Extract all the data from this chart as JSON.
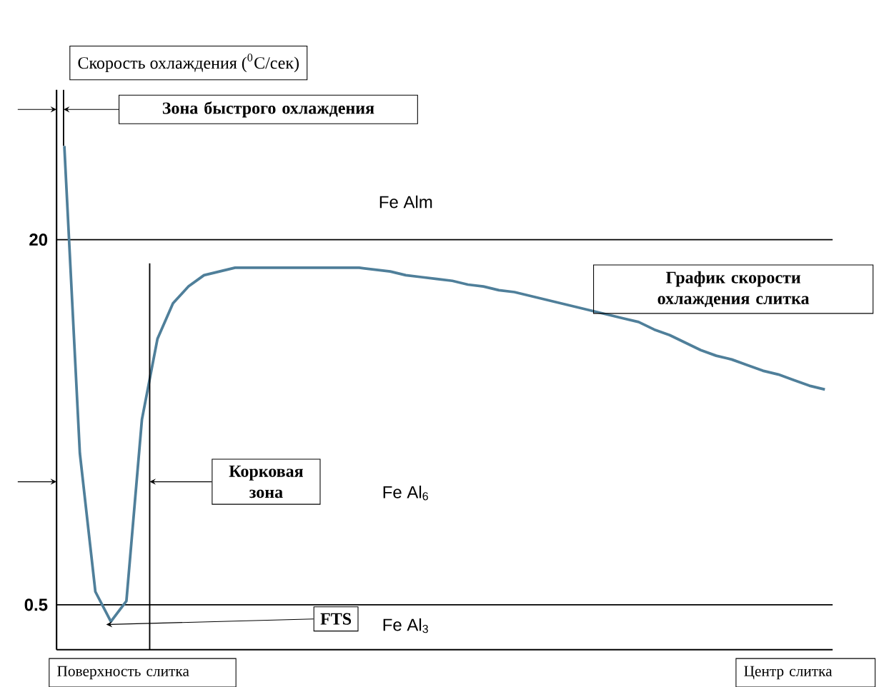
{
  "chart_data": {
    "type": "line",
    "ylabel": "Скорость охлаждения ($^{0}$C/сек)",
    "categories": [
      null,
      null,
      null,
      null,
      null,
      null,
      null,
      null,
      null,
      null,
      null,
      null,
      null,
      null,
      null,
      null,
      null,
      null,
      null,
      null,
      null,
      null,
      null,
      null,
      null,
      null,
      null,
      null,
      null,
      null,
      null,
      null,
      null,
      null,
      null,
      null,
      null,
      null,
      null,
      null,
      null,
      null,
      null,
      null,
      null,
      null,
      null,
      null,
      null,
      null
    ],
    "series": [
      {
        "color": "#4f7f9a",
        "values": [
          25.0,
          8.6,
          1.2,
          -0.4,
          0.7,
          10.4,
          14.7,
          16.6,
          17.5,
          18.1,
          18.3,
          18.5,
          18.5,
          18.5,
          18.5,
          18.5,
          18.5,
          18.5,
          18.5,
          18.5,
          18.4,
          18.3,
          18.1,
          18.0,
          17.9,
          17.8,
          17.6,
          17.5,
          17.3,
          17.2,
          17.0,
          16.8,
          16.6,
          16.4,
          16.2,
          16.0,
          15.8,
          15.6,
          15.2,
          14.9,
          14.5,
          14.1,
          13.8,
          13.6,
          13.3,
          13.0,
          12.8,
          12.5,
          12.2,
          12.0
        ]
      }
    ],
    "ylim": [
      -1.9,
      28
    ],
    "yticks": [
      0.5,
      20
    ],
    "ref_lines": [
      {
        "axis": "y",
        "value": 20
      },
      {
        "axis": "y",
        "value": 0.5
      }
    ],
    "annotations": [
      "График скорости охлаждения слитка",
      "FTS",
      "Fe Alm",
      "Fe Al$_{6}$",
      "Fe Al$_{3}$",
      "Поверхность слитка",
      "Центр слитка",
      "Зона быстрого охлаждения",
      "Корковая зона"
    ],
    "grid": false,
    "marker": "none",
    "line_style": "solid"
  }
}
